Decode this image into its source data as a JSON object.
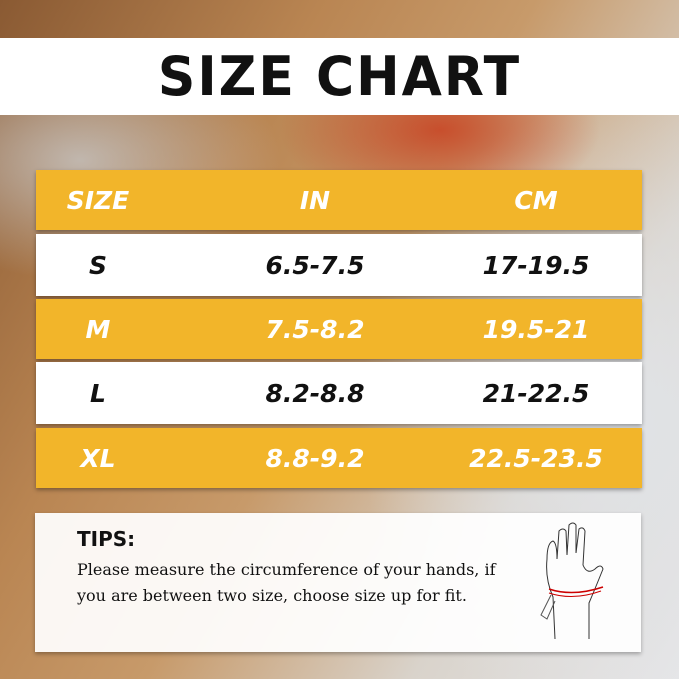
{
  "title": "SIZE CHART",
  "table": {
    "headers": [
      "SIZE",
      "IN",
      "CM"
    ],
    "rows": [
      [
        "S",
        "6.5-7.5",
        "17-19.5"
      ],
      [
        "M",
        "7.5-8.2",
        "19.5-21"
      ],
      [
        "L",
        "8.2-8.8",
        "21-22.5"
      ],
      [
        "XL",
        "8.8-9.2",
        "22.5-23.5"
      ]
    ]
  },
  "tips": {
    "heading": "TIPS:",
    "text": "Please measure the circumference of your hands, if you are between two size, choose size up for fit.",
    "icon": "hand-measuring-tape-icon"
  },
  "colors": {
    "accent": "#F2B52A",
    "text": "#111111"
  }
}
